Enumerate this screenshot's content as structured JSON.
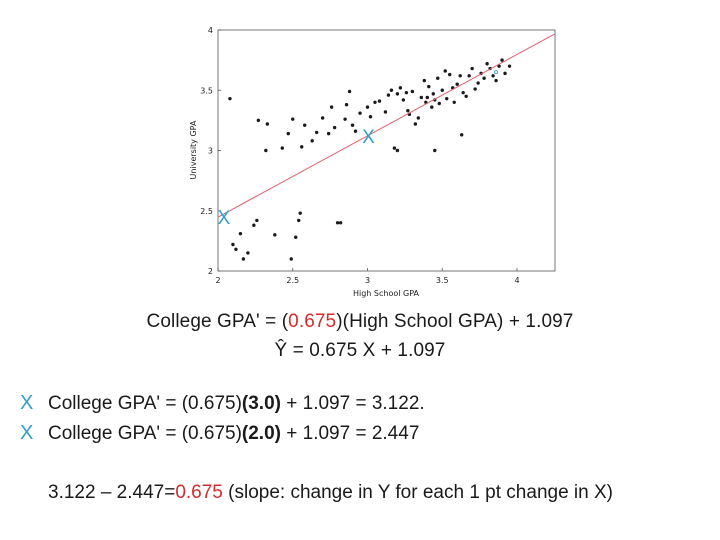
{
  "chart_data": {
    "type": "scatter",
    "xlabel": "High School GPA",
    "ylabel": "University GPA",
    "xlim": [
      2,
      4.25
    ],
    "ylim": [
      2,
      4
    ],
    "xticks": [
      "2",
      "2.5",
      "3",
      "3.5",
      "4"
    ],
    "yticks": [
      "2",
      "2.5",
      "3",
      "3.5",
      "4"
    ],
    "points": [
      [
        2.08,
        3.43
      ],
      [
        2.1,
        2.22
      ],
      [
        2.12,
        2.18
      ],
      [
        2.15,
        2.31
      ],
      [
        2.17,
        2.1
      ],
      [
        2.2,
        2.15
      ],
      [
        2.24,
        2.38
      ],
      [
        2.26,
        2.42
      ],
      [
        2.27,
        3.25
      ],
      [
        2.32,
        3.0
      ],
      [
        2.33,
        3.22
      ],
      [
        2.38,
        2.3
      ],
      [
        2.43,
        3.02
      ],
      [
        2.47,
        3.14
      ],
      [
        2.49,
        2.1
      ],
      [
        2.5,
        3.26
      ],
      [
        2.52,
        2.28
      ],
      [
        2.54,
        2.42
      ],
      [
        2.55,
        2.48
      ],
      [
        2.56,
        3.03
      ],
      [
        2.58,
        3.21
      ],
      [
        2.63,
        3.08
      ],
      [
        2.66,
        3.15
      ],
      [
        2.7,
        3.27
      ],
      [
        2.74,
        3.14
      ],
      [
        2.76,
        3.36
      ],
      [
        2.78,
        3.19
      ],
      [
        2.8,
        2.4
      ],
      [
        2.82,
        2.4
      ],
      [
        2.85,
        3.26
      ],
      [
        2.86,
        3.38
      ],
      [
        2.88,
        3.49
      ],
      [
        2.9,
        3.21
      ],
      [
        2.92,
        3.16
      ],
      [
        2.95,
        3.31
      ],
      [
        3.0,
        3.36
      ],
      [
        3.02,
        3.28
      ],
      [
        3.05,
        3.4
      ],
      [
        3.08,
        3.41
      ],
      [
        3.12,
        3.32
      ],
      [
        3.14,
        3.46
      ],
      [
        3.16,
        3.5
      ],
      [
        3.18,
        3.02
      ],
      [
        3.2,
        3.47
      ],
      [
        3.22,
        3.52
      ],
      [
        3.24,
        3.42
      ],
      [
        3.26,
        3.48
      ],
      [
        3.27,
        3.33
      ],
      [
        3.28,
        3.3
      ],
      [
        3.3,
        3.49
      ],
      [
        3.32,
        3.22
      ],
      [
        3.34,
        3.27
      ],
      [
        3.36,
        3.44
      ],
      [
        3.38,
        3.58
      ],
      [
        3.39,
        3.4
      ],
      [
        3.4,
        3.44
      ],
      [
        3.41,
        3.53
      ],
      [
        3.43,
        3.36
      ],
      [
        3.44,
        3.47
      ],
      [
        3.45,
        3.42
      ],
      [
        3.47,
        3.6
      ],
      [
        3.48,
        3.39
      ],
      [
        3.5,
        3.5
      ],
      [
        3.52,
        3.66
      ],
      [
        3.53,
        3.43
      ],
      [
        3.55,
        3.63
      ],
      [
        3.57,
        3.52
      ],
      [
        3.58,
        3.4
      ],
      [
        3.6,
        3.55
      ],
      [
        3.62,
        3.62
      ],
      [
        3.64,
        3.48
      ],
      [
        3.66,
        3.45
      ],
      [
        3.68,
        3.62
      ],
      [
        3.7,
        3.68
      ],
      [
        3.72,
        3.51
      ],
      [
        3.74,
        3.56
      ],
      [
        3.76,
        3.64
      ],
      [
        3.78,
        3.6
      ],
      [
        3.8,
        3.72
      ],
      [
        3.82,
        3.68
      ],
      [
        3.84,
        3.62
      ],
      [
        3.86,
        3.58
      ],
      [
        3.88,
        3.7
      ],
      [
        3.9,
        3.75
      ],
      [
        3.92,
        3.64
      ],
      [
        3.95,
        3.7
      ],
      [
        3.63,
        3.13
      ],
      [
        3.45,
        3.0
      ],
      [
        3.2,
        3.0
      ]
    ],
    "highlight_point": [
      3.86,
      3.65
    ],
    "regression": {
      "slope": 0.675,
      "intercept": 1.097
    },
    "markers": [
      {
        "label": "X",
        "x": 3.0,
        "y": 3.122
      },
      {
        "label": "X",
        "x": 2.0,
        "y": 2.447
      }
    ],
    "colors": {
      "points": "#1a1a1a",
      "line": "#e06070",
      "marker": "#2f9fca",
      "red": "#d42a2a"
    }
  },
  "text": {
    "eq1_a": "College GPA' = (",
    "eq1_slope": "0.675",
    "eq1_b": ")(High School GPA) + 1.097",
    "eq2": "Ŷ = 0.675 X + 1.097",
    "row1_marker": "X",
    "row1_a": "College GPA' = (0.675)",
    "row1_bold": "(3.0)",
    "row1_b": " + 1.097 = 3.122.",
    "row2_marker": "X",
    "row2_a": "College GPA' = (0.675)",
    "row2_bold": "(2.0)",
    "row2_b": " + 1.097 = 2.447",
    "slope_a": "3.122 – 2.447=",
    "slope_val": "0.675",
    "slope_b": " (slope: change in Y for each 1 pt change in X)"
  }
}
